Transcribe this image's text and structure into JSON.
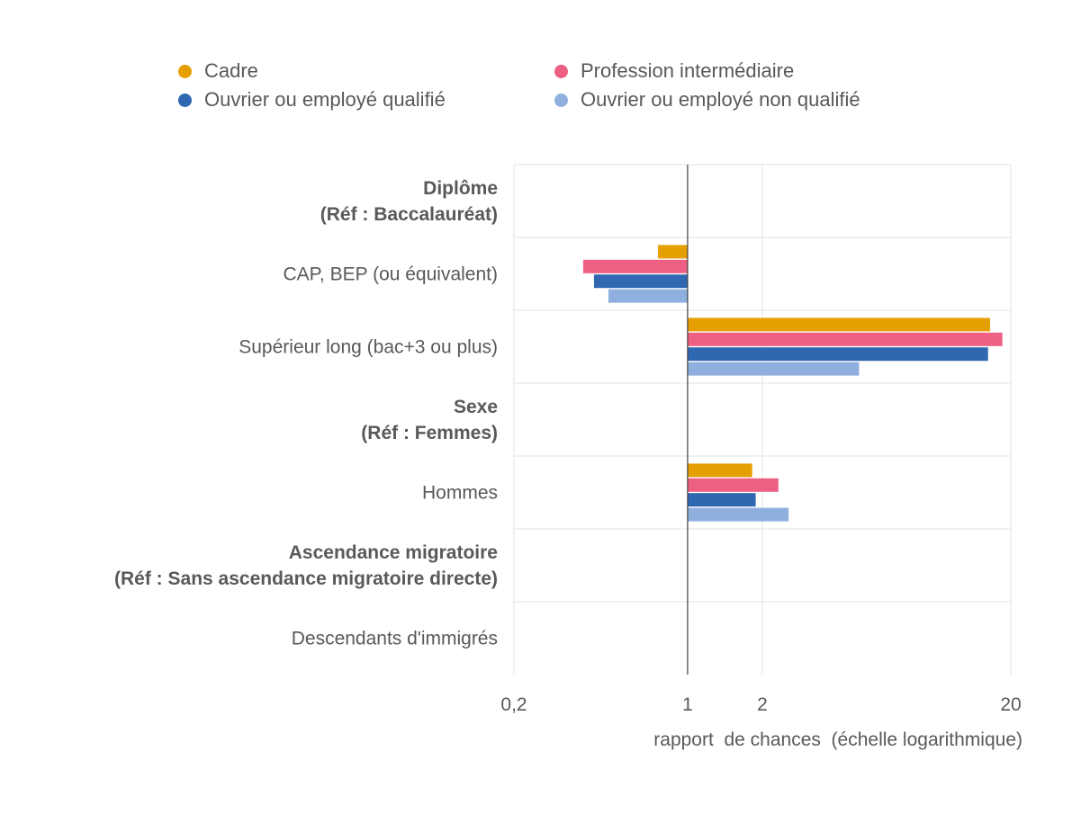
{
  "chart_data": {
    "type": "bar",
    "orientation": "horizontal",
    "x_scale": "log",
    "xlim": [
      0.2,
      20
    ],
    "xlabel": "rapport  de chances  (échelle logarithmique)",
    "ylabel": "",
    "grid": true,
    "legend_position": "top",
    "categories": [
      {
        "label": "Diplôme\n(Réf : Baccalauréat)",
        "header": true
      },
      {
        "label": "CAP, BEP (ou équivalent)",
        "header": false
      },
      {
        "label": "Supérieur long (bac+3 ou plus)",
        "header": false
      },
      {
        "label": "Sexe\n(Réf : Femmes)",
        "header": true
      },
      {
        "label": "Hommes",
        "header": false
      },
      {
        "label": "Ascendance migratoire\n(Réf : Sans ascendance migratoire directe)",
        "header": true
      },
      {
        "label": "Descendants d'immigrés",
        "header": false
      }
    ],
    "series": [
      {
        "name": "Cadre",
        "color": "#E69F00",
        "values": [
          null,
          0.76,
          16.5,
          null,
          1.82,
          null,
          null
        ]
      },
      {
        "name": "Profession intermédiaire",
        "color": "#EE6083",
        "values": [
          null,
          0.38,
          18.5,
          null,
          2.32,
          null,
          null
        ]
      },
      {
        "name": "Ouvrier ou employé qualifié",
        "color": "#2F67B1",
        "values": [
          null,
          0.42,
          16.2,
          null,
          1.88,
          null,
          null
        ]
      },
      {
        "name": "Ouvrier ou employé non qualifié",
        "color": "#8FB0DE",
        "values": [
          null,
          0.48,
          4.9,
          null,
          2.55,
          null,
          null
        ]
      }
    ],
    "x_ticks": [
      {
        "value": 0.2,
        "label": "0,2"
      },
      {
        "value": 1,
        "label": "1"
      },
      {
        "value": 2,
        "label": "2"
      },
      {
        "value": 20,
        "label": "20"
      }
    ],
    "reference_line": 1
  }
}
